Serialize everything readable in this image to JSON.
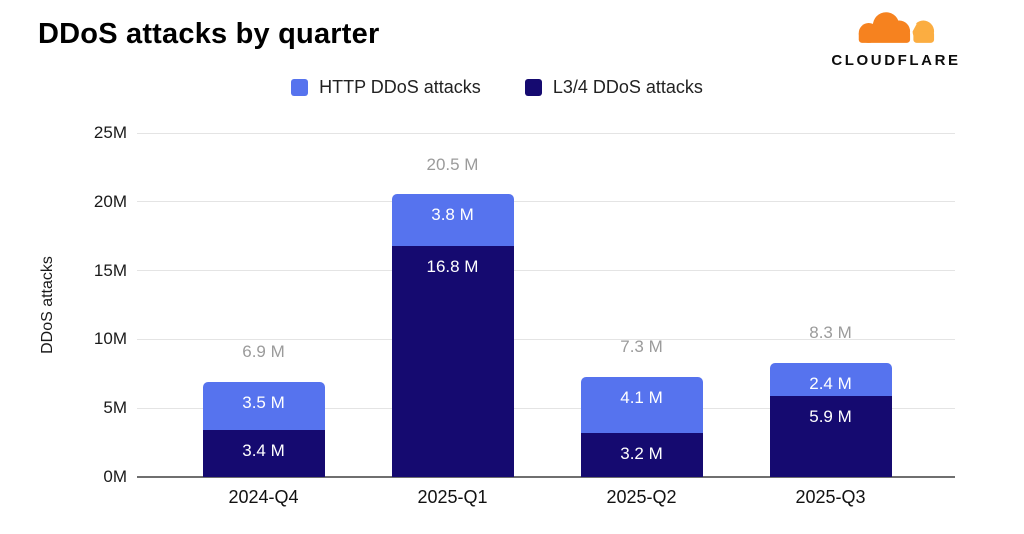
{
  "page": {
    "title": "DDoS attacks by quarter"
  },
  "logo": {
    "brand": "CLOUDFLARE",
    "cloud_front_color": "#F6821F",
    "cloud_back_color": "#FBAD41"
  },
  "legend": [
    {
      "label": "HTTP DDoS attacks",
      "color": "#5673EE"
    },
    {
      "label": "L3/4 DDoS attacks",
      "color": "#150A70"
    }
  ],
  "chart_data": {
    "type": "bar",
    "stacked": true,
    "title": "DDoS attacks by quarter",
    "xlabel": "",
    "ylabel": "DDoS attacks",
    "unit": "M",
    "ylim": [
      0,
      25
    ],
    "yticks": [
      "0M",
      "5M",
      "10M",
      "15M",
      "20M",
      "25M"
    ],
    "grid": true,
    "legend_position": "top",
    "categories": [
      "2024-Q4",
      "2025-Q1",
      "2025-Q2",
      "2025-Q3"
    ],
    "series": [
      {
        "name": "HTTP DDoS attacks",
        "slug": "http-ddos",
        "color": "#5673EE",
        "values": [
          3.5,
          3.8,
          4.1,
          2.4
        ],
        "labels": [
          "3.5 M",
          "3.8 M",
          "4.1 M",
          "2.4 M"
        ]
      },
      {
        "name": "L3/4 DDoS attacks",
        "slug": "l34-ddos",
        "color": "#150A70",
        "values": [
          3.4,
          16.8,
          3.2,
          5.9
        ],
        "labels": [
          "3.4 M",
          "16.8 M",
          "3.2 M",
          "5.9 M"
        ]
      }
    ],
    "stack_bottom_to_top": [
      "L3/4 DDoS attacks",
      "HTTP DDoS attacks"
    ],
    "totals": [
      6.9,
      20.5,
      7.3,
      8.3
    ],
    "total_labels": [
      "6.9 M",
      "20.5 M",
      "7.3 M",
      "8.3 M"
    ]
  },
  "colors": {
    "gridline": "#e4e4e4",
    "zero_line": "#6f6f6f",
    "total_label": "#9b9b9b",
    "segment_label": "#ffffff"
  }
}
